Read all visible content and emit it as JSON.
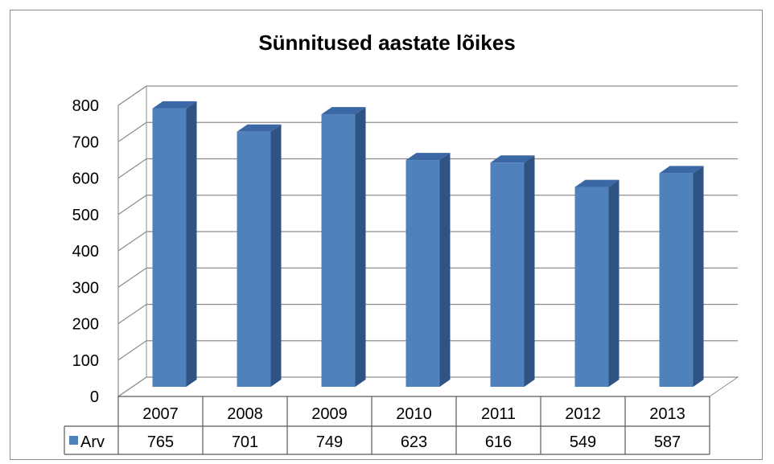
{
  "chart_data": {
    "type": "bar",
    "title": "Sünnitused aastate lõikes",
    "categories": [
      "2007",
      "2008",
      "2009",
      "2010",
      "2011",
      "2012",
      "2013"
    ],
    "series": [
      {
        "name": "Arv",
        "values": [
          765,
          701,
          749,
          623,
          616,
          549,
          587
        ],
        "color": "#4f81bd"
      }
    ],
    "ylim": [
      0,
      800
    ],
    "yticks": [
      "0",
      "100",
      "200",
      "300",
      "400",
      "500",
      "600",
      "700",
      "800"
    ],
    "grid": true,
    "legend": "data-table",
    "style": "3d-column"
  }
}
